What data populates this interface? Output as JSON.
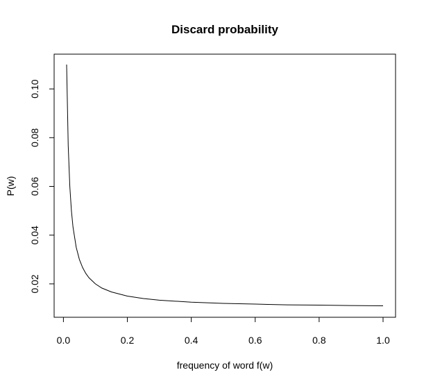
{
  "chart_data": {
    "type": "line",
    "title": "Discard probability",
    "xlabel": "frequency of word f(w)",
    "ylabel": "P(w)",
    "xlim": [
      0.01,
      1.0
    ],
    "ylim": [
      0.01,
      0.11
    ],
    "xticks": [
      0.0,
      0.2,
      0.4,
      0.6,
      0.8,
      1.0
    ],
    "xtick_labels": [
      "0.0",
      "0.2",
      "0.4",
      "0.6",
      "0.8",
      "1.0"
    ],
    "yticks": [
      0.02,
      0.04,
      0.06,
      0.08,
      0.1
    ],
    "ytick_labels": [
      "0.02",
      "0.04",
      "0.06",
      "0.08",
      "0.10"
    ],
    "grid": false,
    "series": [
      {
        "color": "#000000",
        "x": [
          0.01,
          0.015,
          0.02,
          0.025,
          0.03,
          0.04,
          0.05,
          0.06,
          0.07,
          0.08,
          0.1,
          0.12,
          0.15,
          0.2,
          0.25,
          0.3,
          0.35,
          0.4,
          0.5,
          0.6,
          0.7,
          0.8,
          0.9,
          1.0
        ],
        "y": [
          0.11,
          0.0767,
          0.06,
          0.05,
          0.0433,
          0.035,
          0.03,
          0.0267,
          0.0243,
          0.0225,
          0.02,
          0.0183,
          0.0167,
          0.015,
          0.014,
          0.0133,
          0.0129,
          0.0125,
          0.012,
          0.0117,
          0.0114,
          0.0113,
          0.0111,
          0.011
        ]
      }
    ]
  }
}
